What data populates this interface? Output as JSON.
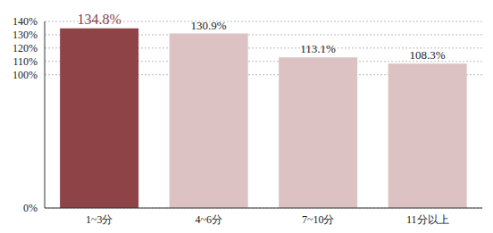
{
  "chart_data": {
    "type": "bar",
    "categories": [
      "1~3分",
      "4~6分",
      "7~10分",
      "11分以上"
    ],
    "values": [
      134.8,
      130.9,
      113.1,
      108.3
    ],
    "value_labels": [
      "134.8%",
      "130.9%",
      "113.1%",
      "108.3%"
    ],
    "colors": [
      "#8e4347",
      "#dcc2c3",
      "#dcc2c3",
      "#dcc2c3"
    ],
    "ylim": [
      0,
      140
    ],
    "yticks": [
      {
        "value": 0,
        "label": "0%"
      },
      {
        "value": 100,
        "label": "100%"
      },
      {
        "value": 110,
        "label": "110%"
      },
      {
        "value": 120,
        "label": "120%"
      },
      {
        "value": 130,
        "label": "130%"
      },
      {
        "value": 140,
        "label": "140%"
      }
    ],
    "grid": true,
    "data_labels": true
  }
}
